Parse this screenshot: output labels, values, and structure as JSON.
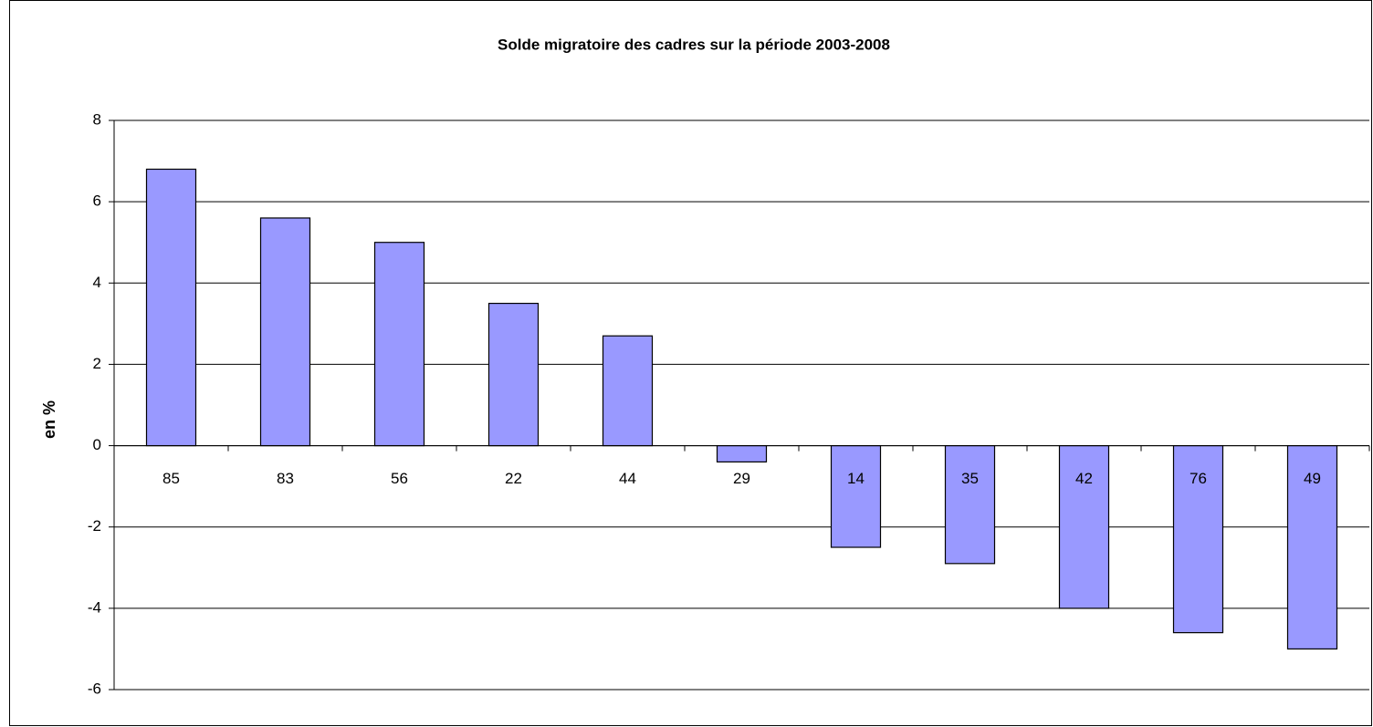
{
  "chart_data": {
    "type": "bar",
    "title": "Solde migratoire des cadres sur la période 2003-2008",
    "y_label": "en  %",
    "categories": [
      "85",
      "83",
      "56",
      "22",
      "44",
      "29",
      "14",
      "35",
      "42",
      "76",
      "49"
    ],
    "values": [
      6.8,
      5.6,
      5.0,
      3.5,
      2.7,
      -0.4,
      -2.5,
      -2.9,
      -4.0,
      -4.6,
      -5.0
    ],
    "color": "#9999ff",
    "ylim": [
      -6,
      8
    ],
    "yticks": [
      -6,
      -4,
      -2,
      0,
      2,
      4,
      6,
      8
    ],
    "grid": true
  }
}
